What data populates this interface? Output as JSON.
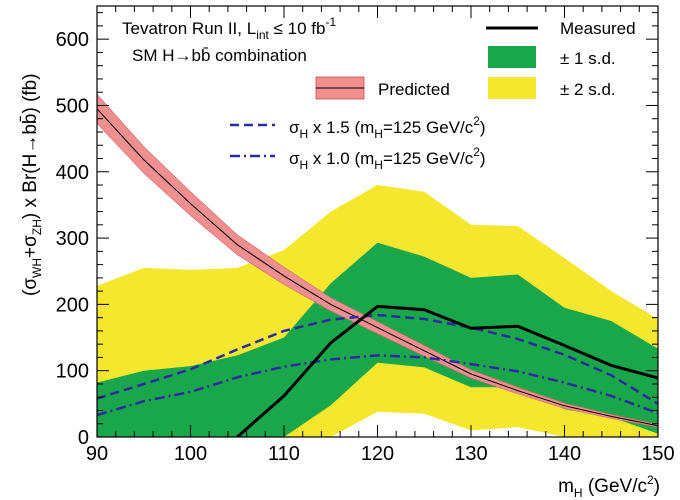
{
  "chart_data": {
    "type": "line",
    "title_line1": "Tevatron Run II, L",
    "title_line1_sub": "int",
    "title_line1_rest": " ≤ 10 fb",
    "title_line1_sup": "-1",
    "title_line2": "SM H→bb̄ combination",
    "xlabel": "m",
    "xlabel_sub": "H",
    "xlabel_rest": " (GeV/c",
    "xlabel_sup": "2",
    "xlabel_end": ")",
    "ylabel_parts": [
      "(σ",
      "WH",
      "+σ",
      "ZH",
      ") x Br(H→bb̄) (fb)"
    ],
    "xlim": [
      90,
      150
    ],
    "ylim": [
      0,
      650
    ],
    "xticks": [
      90,
      100,
      110,
      120,
      130,
      140,
      150
    ],
    "yticks": [
      0,
      100,
      200,
      300,
      400,
      500,
      600
    ],
    "grid": false,
    "legend_placement": "top",
    "legend": {
      "measured": "Measured",
      "one_sd": "± 1 s.d.",
      "two_sd": "± 2 s.d.",
      "predicted": "Predicted",
      "dashed_label": "σ",
      "dashed_sub": "H",
      "dashed_rest": " x 1.5 (m",
      "dashed_sub2": "H",
      "dashed_rest2": "=125 GeV/c",
      "dashed_sup": "2",
      "dashed_end": ")",
      "dashdot_label": "σ",
      "dashdot_sub": "H",
      "dashdot_rest": " x 1.0 (m",
      "dashdot_sub2": "H",
      "dashdot_rest2": "=125 GeV/c",
      "dashdot_sup": "2",
      "dashdot_end": ")"
    },
    "colors": {
      "two_sd": "#f5e62e",
      "one_sd": "#1aa64a",
      "predicted_band": "#ef8f8f",
      "predicted_line": "#000000",
      "measured": "#000000",
      "scaled": "#2b2ba0"
    },
    "x": [
      90,
      95,
      100,
      105,
      110,
      115,
      120,
      125,
      130,
      135,
      140,
      145,
      150
    ],
    "two_sd_high": [
      228,
      255,
      252,
      255,
      282,
      340,
      380,
      370,
      320,
      318,
      270,
      220,
      178
    ],
    "two_sd_low": [
      0,
      0,
      0,
      0,
      0,
      0,
      38,
      35,
      10,
      15,
      0,
      0,
      0
    ],
    "one_sd_high": [
      82,
      100,
      107,
      123,
      150,
      232,
      293,
      272,
      240,
      245,
      195,
      175,
      133
    ],
    "one_sd_low": [
      0,
      0,
      0,
      0,
      0,
      48,
      112,
      105,
      75,
      75,
      42,
      30,
      5
    ],
    "measured": {
      "x": [
        105,
        110,
        115,
        120,
        125,
        130,
        135,
        140,
        145,
        150
      ],
      "y": [
        0,
        62,
        142,
        197,
        192,
        164,
        167,
        138,
        108,
        89
      ]
    },
    "predicted": {
      "x": [
        90,
        95,
        100,
        105,
        110,
        115,
        120,
        125,
        130,
        135,
        140,
        145,
        150
      ],
      "y": [
        495,
        418,
        352,
        290,
        243,
        200,
        165,
        130,
        95,
        70,
        47,
        31,
        17
      ],
      "band_halfwidth": [
        22,
        20,
        18,
        15,
        13,
        10,
        9,
        8,
        6,
        5,
        4,
        3,
        2
      ]
    },
    "sigma_x15": {
      "x": [
        90,
        95,
        100,
        105,
        110,
        115,
        120,
        125,
        130,
        135,
        140,
        145,
        150
      ],
      "y": [
        58,
        80,
        102,
        132,
        160,
        177,
        184,
        178,
        165,
        148,
        124,
        93,
        50
      ]
    },
    "sigma_x10": {
      "x": [
        90,
        95,
        100,
        105,
        110,
        115,
        120,
        125,
        130,
        135,
        140,
        145,
        150
      ],
      "y": [
        33,
        54,
        68,
        90,
        106,
        117,
        123,
        120,
        110,
        99,
        82,
        62,
        36
      ]
    }
  }
}
